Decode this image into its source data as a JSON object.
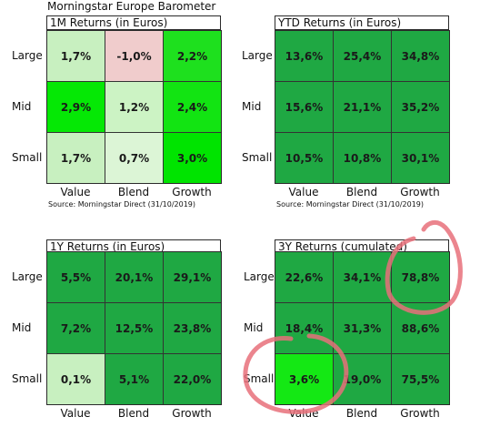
{
  "chart_data": [
    {
      "type": "heatmap",
      "title": "Morningstar Europe Barometer",
      "subtitle": "1M Returns (in Euros)",
      "rows": [
        "Large",
        "Mid",
        "Small"
      ],
      "columns": [
        "Value",
        "Blend",
        "Growth"
      ],
      "values": [
        [
          1.7,
          -1.0,
          2.2
        ],
        [
          2.9,
          1.2,
          2.4
        ],
        [
          1.7,
          0.7,
          3.0
        ]
      ],
      "labels": [
        [
          "1,7%",
          "-1,0%",
          "2,2%"
        ],
        [
          "2,9%",
          "1,2%",
          "2,4%"
        ],
        [
          "1,7%",
          "0,7%",
          "3,0%"
        ]
      ],
      "colors": [
        [
          "#c8f0c0",
          "#f0cccc",
          "#1ee01e"
        ],
        [
          "#05e805",
          "#ccf3c4",
          "#12e412"
        ],
        [
          "#c8f0c0",
          "#dcf5d6",
          "#00e400"
        ]
      ],
      "source": "Source: Morningstar Direct (31/10/2019)"
    },
    {
      "type": "heatmap",
      "title": "",
      "subtitle": "YTD Returns (in Euros)",
      "rows": [
        "Large",
        "Mid",
        "Small"
      ],
      "columns": [
        "Value",
        "Blend",
        "Growth"
      ],
      "values": [
        [
          13.6,
          25.4,
          34.8
        ],
        [
          15.6,
          21.1,
          35.2
        ],
        [
          10.5,
          10.8,
          30.1
        ]
      ],
      "labels": [
        [
          "13,6%",
          "25,4%",
          "34,8%"
        ],
        [
          "15,6%",
          "21,1%",
          "35,2%"
        ],
        [
          "10,5%",
          "10,8%",
          "30,1%"
        ]
      ],
      "colors": [
        [
          "#1fa843",
          "#1fa843",
          "#1fa843"
        ],
        [
          "#1fa843",
          "#1fa843",
          "#1fa843"
        ],
        [
          "#1fa843",
          "#1fa843",
          "#1fa843"
        ]
      ],
      "source": "Source: Morningstar Direct (31/10/2019)"
    },
    {
      "type": "heatmap",
      "title": "",
      "subtitle": "1Y Returns (in Euros)",
      "rows": [
        "Large",
        "Mid",
        "Small"
      ],
      "columns": [
        "Value",
        "Blend",
        "Growth"
      ],
      "values": [
        [
          5.5,
          20.1,
          29.1
        ],
        [
          7.2,
          12.5,
          23.8
        ],
        [
          0.1,
          5.1,
          22.0
        ]
      ],
      "labels": [
        [
          "5,5%",
          "20,1%",
          "29,1%"
        ],
        [
          "7,2%",
          "12,5%",
          "23,8%"
        ],
        [
          "0,1%",
          "5,1%",
          "22,0%"
        ]
      ],
      "colors": [
        [
          "#1fa843",
          "#1fa843",
          "#1fa843"
        ],
        [
          "#1fa843",
          "#1fa843",
          "#1fa843"
        ],
        [
          "#c8f0c0",
          "#1fa843",
          "#1fa843"
        ]
      ],
      "source": ""
    },
    {
      "type": "heatmap",
      "title": "",
      "subtitle": "3Y Returns (cumulated)",
      "rows": [
        "Large",
        "Mid",
        "Small"
      ],
      "columns": [
        "Value",
        "Blend",
        "Growth"
      ],
      "values": [
        [
          22.6,
          34.1,
          78.8
        ],
        [
          18.4,
          31.3,
          88.6
        ],
        [
          3.6,
          19.0,
          75.5
        ]
      ],
      "labels": [
        [
          "22,6%",
          "34,1%",
          "78,8%"
        ],
        [
          "18,4%",
          "31,3%",
          "88,6%"
        ],
        [
          "3,6%",
          "19,0%",
          "75,5%"
        ]
      ],
      "colors": [
        [
          "#1fa843",
          "#1fa843",
          "#1fa843"
        ],
        [
          "#1fa843",
          "#1fa843",
          "#1fa843"
        ],
        [
          "#14e814",
          "#1fa843",
          "#1fa843"
        ]
      ],
      "source": ""
    }
  ],
  "annotation_color": "#e8707a"
}
